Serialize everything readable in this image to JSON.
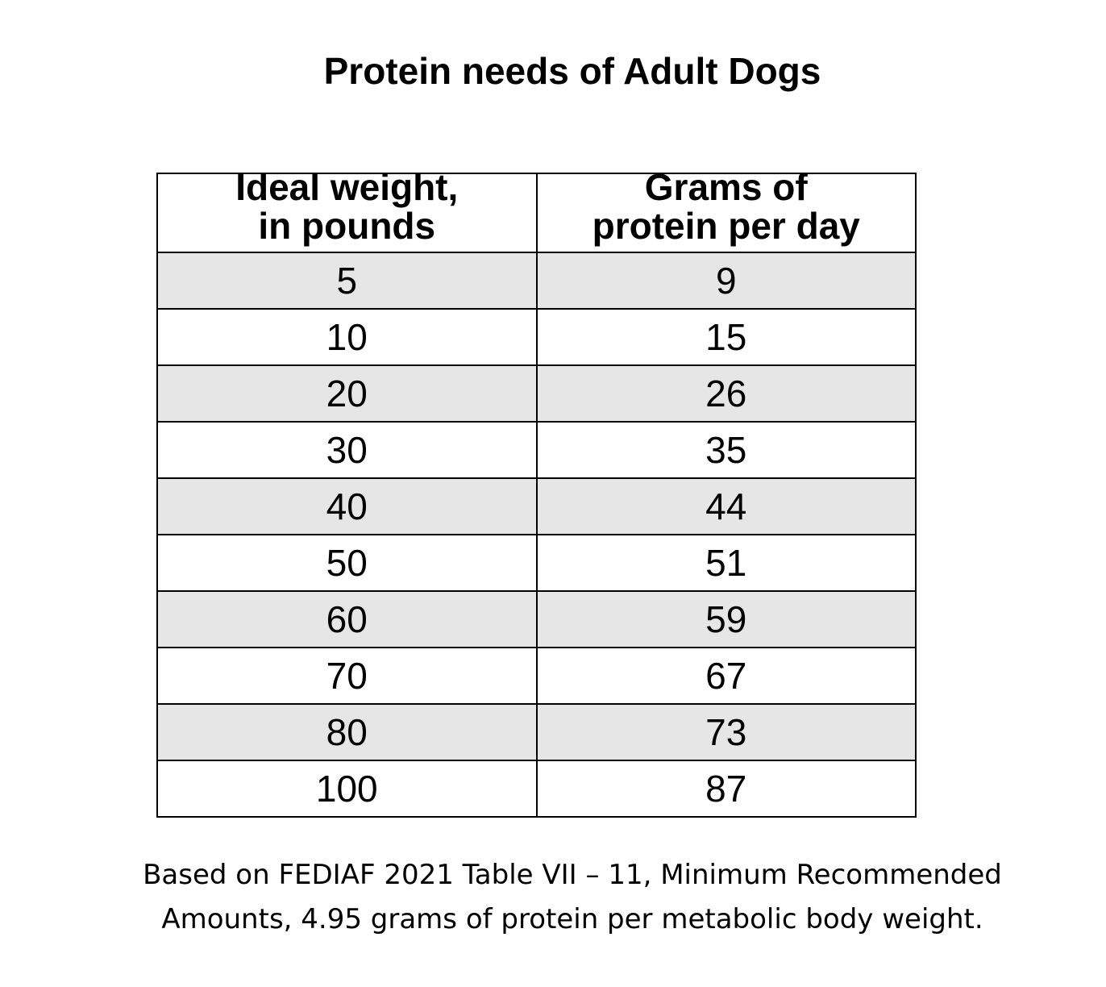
{
  "title": "Protein needs of Adult Dogs",
  "table": {
    "headers": [
      {
        "line1": "Ideal weight,",
        "line2": "in pounds"
      },
      {
        "line1": "Grams of",
        "line2": "protein per day"
      }
    ],
    "rows": [
      {
        "weight": "5",
        "protein": "9"
      },
      {
        "weight": "10",
        "protein": "15"
      },
      {
        "weight": "20",
        "protein": "26"
      },
      {
        "weight": "30",
        "protein": "35"
      },
      {
        "weight": "40",
        "protein": "44"
      },
      {
        "weight": "50",
        "protein": "51"
      },
      {
        "weight": "60",
        "protein": "59"
      },
      {
        "weight": "70",
        "protein": "67"
      },
      {
        "weight": "80",
        "protein": "73"
      },
      {
        "weight": "100",
        "protein": "87"
      }
    ],
    "colors": {
      "shaded_row": "#e6e6e6",
      "plain_row": "#ffffff",
      "border": "#000000"
    }
  },
  "footnote": {
    "line1": "Based on FEDIAF 2021 Table VII – 11, Minimum Recommended",
    "line2": "Amounts,  4.95 grams of protein per metabolic body weight."
  }
}
